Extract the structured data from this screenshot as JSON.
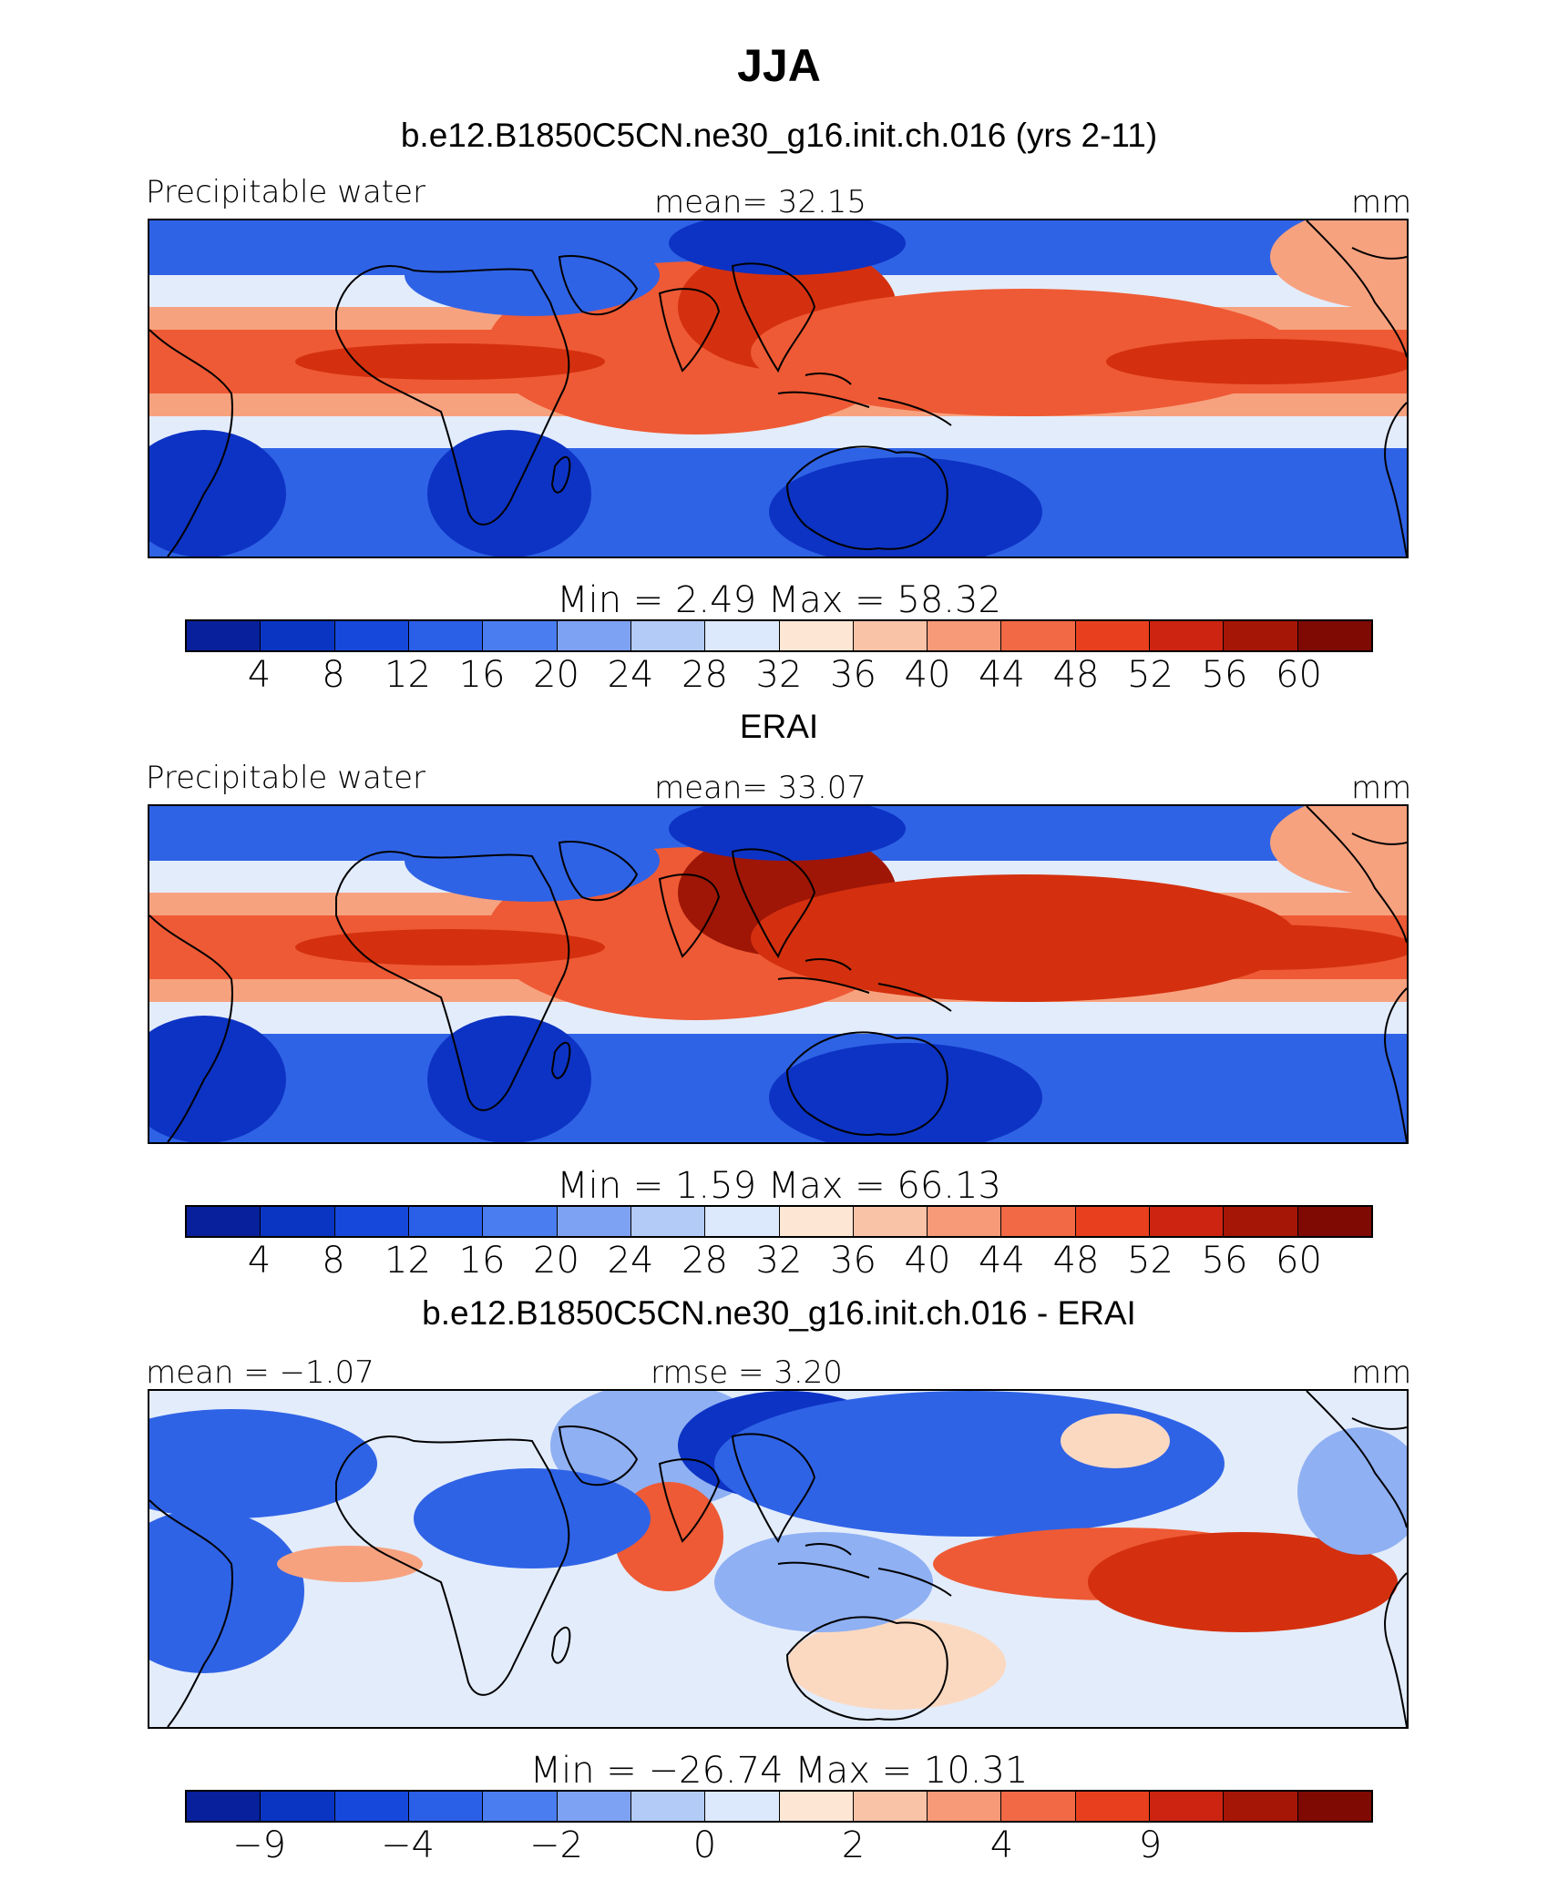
{
  "figure": {
    "title": "JJA"
  },
  "panels": [
    {
      "title": "b.e12.B1850C5CN.ne30_g16.init.ch.016 (yrs 2-11)",
      "left_label": "Precipitable water",
      "center_label": "mean=   32.15",
      "right_label": "mm",
      "stats": "Min  =     2.49  Max  =    58.32",
      "tick_labels": [
        "4",
        "8",
        "12",
        "16",
        "20",
        "24",
        "28",
        "32",
        "36",
        "40",
        "44",
        "48",
        "52",
        "56",
        "60"
      ],
      "map_name": "model-field-map"
    },
    {
      "title": "ERAI",
      "left_label": "Precipitable water",
      "center_label": "mean=   33.07",
      "right_label": "mm",
      "stats": "Min  =     1.59  Max  =    66.13",
      "tick_labels": [
        "4",
        "8",
        "12",
        "16",
        "20",
        "24",
        "28",
        "32",
        "36",
        "40",
        "44",
        "48",
        "52",
        "56",
        "60"
      ],
      "map_name": "obs-field-map"
    },
    {
      "title": "b.e12.B1850C5CN.ne30_g16.init.ch.016 - ERAI",
      "left_label": "mean =  −1.07",
      "center_label": "rmse =     3.20",
      "right_label": "mm",
      "stats": "Min  = −26.74  Max  =    10.31",
      "tick_labels": [
        "−9",
        "",
        "−4",
        "",
        "−2",
        "",
        "0",
        "",
        "2",
        "",
        "4",
        "",
        "9",
        ""
      ],
      "map_name": "difference-field-map"
    }
  ],
  "colorbar_colors": [
    "#08209b",
    "#0a35c2",
    "#1648db",
    "#2a5fe8",
    "#4a7ef0",
    "#7ea2f3",
    "#b3cbf7",
    "#dce8fb",
    "#fde6d4",
    "#f9c3a7",
    "#f69a78",
    "#f26a45",
    "#e8401e",
    "#cc2410",
    "#a51607",
    "#7e0a03"
  ],
  "map_colors": {
    "deep_blue": "#0d33c4",
    "mid_blue": "#2f63e6",
    "light_blue": "#8fb0f3",
    "pale": "#e3ecfb",
    "peach": "#fbd9c1",
    "salmon": "#f7a27f",
    "orange_red": "#ee5a35",
    "red": "#d4300f",
    "dark_red": "#9f1606",
    "coast": "#000000"
  }
}
